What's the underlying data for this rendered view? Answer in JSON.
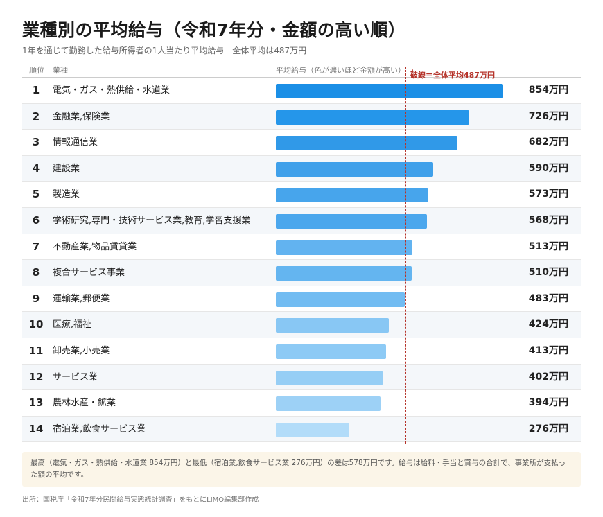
{
  "title": "業種別の平均給与（令和7年分・金額の高い順）",
  "subtitle": "1年を通じて勤務した給与所得者の1人当たり平均給与　全体平均は487万円",
  "header": {
    "rank": "順位",
    "industry": "業種",
    "bar": "平均給与（色が濃いほど金額が高い）",
    "avg_marker": "┊",
    "avg_label": "破線＝全体平均487万円"
  },
  "chart_data": {
    "type": "bar",
    "orientation": "horizontal",
    "average": 487,
    "unit": "万円",
    "xlim": [
      0,
      854
    ],
    "grid": false,
    "categories": [
      "電気・ガス・熱供給・水道業",
      "金融業,保険業",
      "情報通信業",
      "建設業",
      "製造業",
      "学術研究,専門・技術サービス業,教育,学習支援業",
      "不動産業,物品賃貸業",
      "複合サービス事業",
      "運輸業,郵便業",
      "医療,福祉",
      "卸売業,小売業",
      "サービス業",
      "農林水産・鉱業",
      "宿泊業,飲食サービス業"
    ],
    "ranks": [
      "1",
      "2",
      "3",
      "4",
      "5",
      "6",
      "7",
      "8",
      "9",
      "10",
      "11",
      "12",
      "13",
      "14"
    ],
    "values": [
      854,
      726,
      682,
      590,
      573,
      568,
      513,
      510,
      483,
      424,
      413,
      402,
      394,
      276
    ],
    "value_labels": [
      "854万円",
      "726万円",
      "682万円",
      "590万円",
      "573万円",
      "568万円",
      "513万円",
      "510万円",
      "483万円",
      "424万円",
      "413万円",
      "402万円",
      "394万円",
      "276万円"
    ],
    "colors": [
      "#1b8fe6",
      "#2596ea",
      "#3099e8",
      "#3fa0ea",
      "#47a5ec",
      "#4ba7ed",
      "#62b3f0",
      "#64b5f0",
      "#72bcf2",
      "#88c7f4",
      "#8dcaf5",
      "#96cef5",
      "#9dd1f6",
      "#b2dcf9"
    ]
  },
  "note": "最高（電気・ガス・熱供給・水道業 854万円）と最低（宿泊業,飲食サービス業 276万円）の差は578万円です。給与は給料・手当と賞与の合計で、事業所が支払った額の平均です。",
  "source": "出所：国税庁「令和7年分民間給与実態統計調査」をもとにLIMO編集部作成"
}
